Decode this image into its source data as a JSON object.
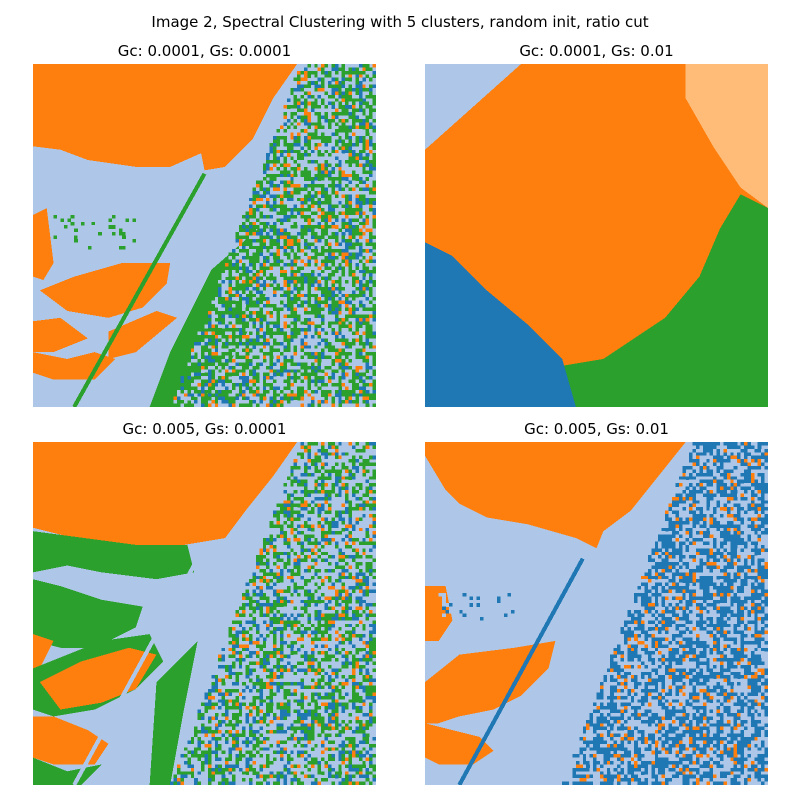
{
  "figure": {
    "title": "Image 2, Spectral Clustering with 5 clusters, random init, ratio cut"
  },
  "chart_data": [
    {
      "type": "heatmap",
      "title": "Gc: 0.0001, Gs: 0.0001",
      "axes": "off",
      "colors_used": [
        "#aec7e8",
        "#ff7f0e",
        "#2ca02c",
        "#1f77b4"
      ]
    },
    {
      "type": "heatmap",
      "title": "Gc: 0.0001, Gs: 0.01",
      "axes": "off",
      "colors_used": [
        "#aec7e8",
        "#ff7f0e",
        "#ffbb78",
        "#2ca02c",
        "#1f77b4"
      ]
    },
    {
      "type": "heatmap",
      "title": "Gc: 0.005, Gs: 0.0001",
      "axes": "off",
      "colors_used": [
        "#aec7e8",
        "#ff7f0e",
        "#2ca02c",
        "#1f77b4"
      ]
    },
    {
      "type": "heatmap",
      "title": "Gc: 0.005, Gs: 0.01",
      "axes": "off",
      "colors_used": [
        "#aec7e8",
        "#ff7f0e",
        "#1f77b4"
      ]
    }
  ],
  "palette": {
    "light_blue": "#aec7e8",
    "orange": "#ff7f0e",
    "light_orange": "#ffbb78",
    "green": "#2ca02c",
    "blue": "#1f77b4"
  }
}
